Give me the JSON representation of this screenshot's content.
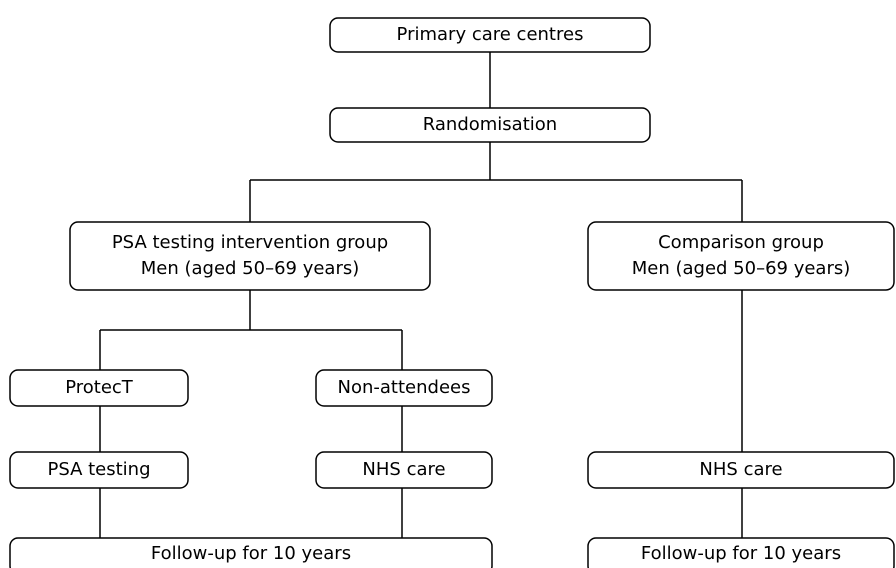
{
  "nodes": [
    {
      "label": [
        "Primary care centres"
      ]
    },
    {
      "label": [
        "Randomisation"
      ]
    },
    {
      "label": [
        "PSA testing intervention group",
        "Men (aged 50–69 years)"
      ]
    },
    {
      "label": [
        "Comparison group",
        "Men (aged 50–69 years)"
      ]
    },
    {
      "label": [
        "ProtecT"
      ]
    },
    {
      "label": [
        "Non-attendees"
      ]
    },
    {
      "label": [
        "PSA testing"
      ]
    },
    {
      "label": [
        "NHS care"
      ]
    },
    {
      "label": [
        "NHS care"
      ]
    },
    {
      "label": [
        "Follow-up for 10 years"
      ]
    },
    {
      "label": [
        "Follow-up for 10 years"
      ]
    }
  ]
}
